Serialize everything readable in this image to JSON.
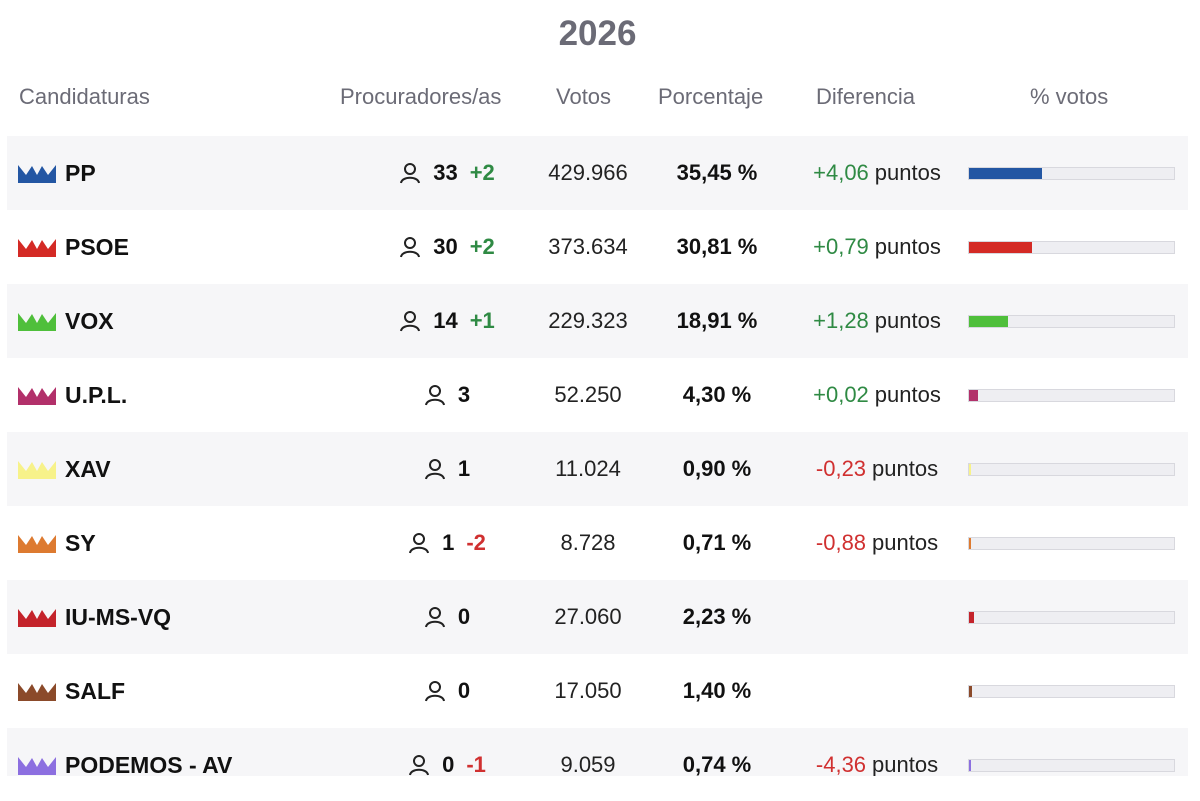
{
  "year": "2026",
  "header": {
    "candidaturas": "Candidaturas",
    "procuradores": "Procuradores/as",
    "votos": "Votos",
    "porcentaje": "Porcentaje",
    "diferencia": "Diferencia",
    "pct_votos": "% votos"
  },
  "bar_scale_max_pct": 100,
  "rows": [
    {
      "name": "PP",
      "color": "#2356a3",
      "seats": "33",
      "seat_change": "+2",
      "votes": "429.966",
      "pct": "35,45 %",
      "pct_value": 35.45,
      "diff": "+4,06",
      "diff_unit": "puntos"
    },
    {
      "name": "PSOE",
      "color": "#d42a25",
      "seats": "30",
      "seat_change": "+2",
      "votes": "373.634",
      "pct": "30,81 %",
      "pct_value": 30.81,
      "diff": "+0,79",
      "diff_unit": "puntos"
    },
    {
      "name": "VOX",
      "color": "#4fbf3b",
      "seats": "14",
      "seat_change": "+1",
      "votes": "229.323",
      "pct": "18,91 %",
      "pct_value": 18.91,
      "diff": "+1,28",
      "diff_unit": "puntos"
    },
    {
      "name": "U.P.L.",
      "color": "#b2306a",
      "seats": "3",
      "seat_change": "",
      "votes": "52.250",
      "pct": "4,30 %",
      "pct_value": 4.3,
      "diff": "+0,02",
      "diff_unit": "puntos"
    },
    {
      "name": "XAV",
      "color": "#f7f28a",
      "seats": "1",
      "seat_change": "",
      "votes": "11.024",
      "pct": "0,90 %",
      "pct_value": 0.9,
      "diff": "-0,23",
      "diff_unit": "puntos"
    },
    {
      "name": "SY",
      "color": "#dd7a30",
      "seats": "1",
      "seat_change": "-2",
      "votes": "8.728",
      "pct": "0,71 %",
      "pct_value": 0.71,
      "diff": "-0,88",
      "diff_unit": "puntos"
    },
    {
      "name": "IU-MS-VQ",
      "color": "#c4232b",
      "seats": "0",
      "seat_change": "",
      "votes": "27.060",
      "pct": "2,23 %",
      "pct_value": 2.23,
      "diff": "",
      "diff_unit": ""
    },
    {
      "name": "SALF",
      "color": "#8b4a2a",
      "seats": "0",
      "seat_change": "",
      "votes": "17.050",
      "pct": "1,40 %",
      "pct_value": 1.4,
      "diff": "",
      "diff_unit": ""
    },
    {
      "name": "PODEMOS - AV",
      "color": "#8c6fe0",
      "seats": "0",
      "seat_change": "-1",
      "votes": "9.059",
      "pct": "0,74 %",
      "pct_value": 0.74,
      "diff": "-4,36",
      "diff_unit": "puntos"
    }
  ]
}
